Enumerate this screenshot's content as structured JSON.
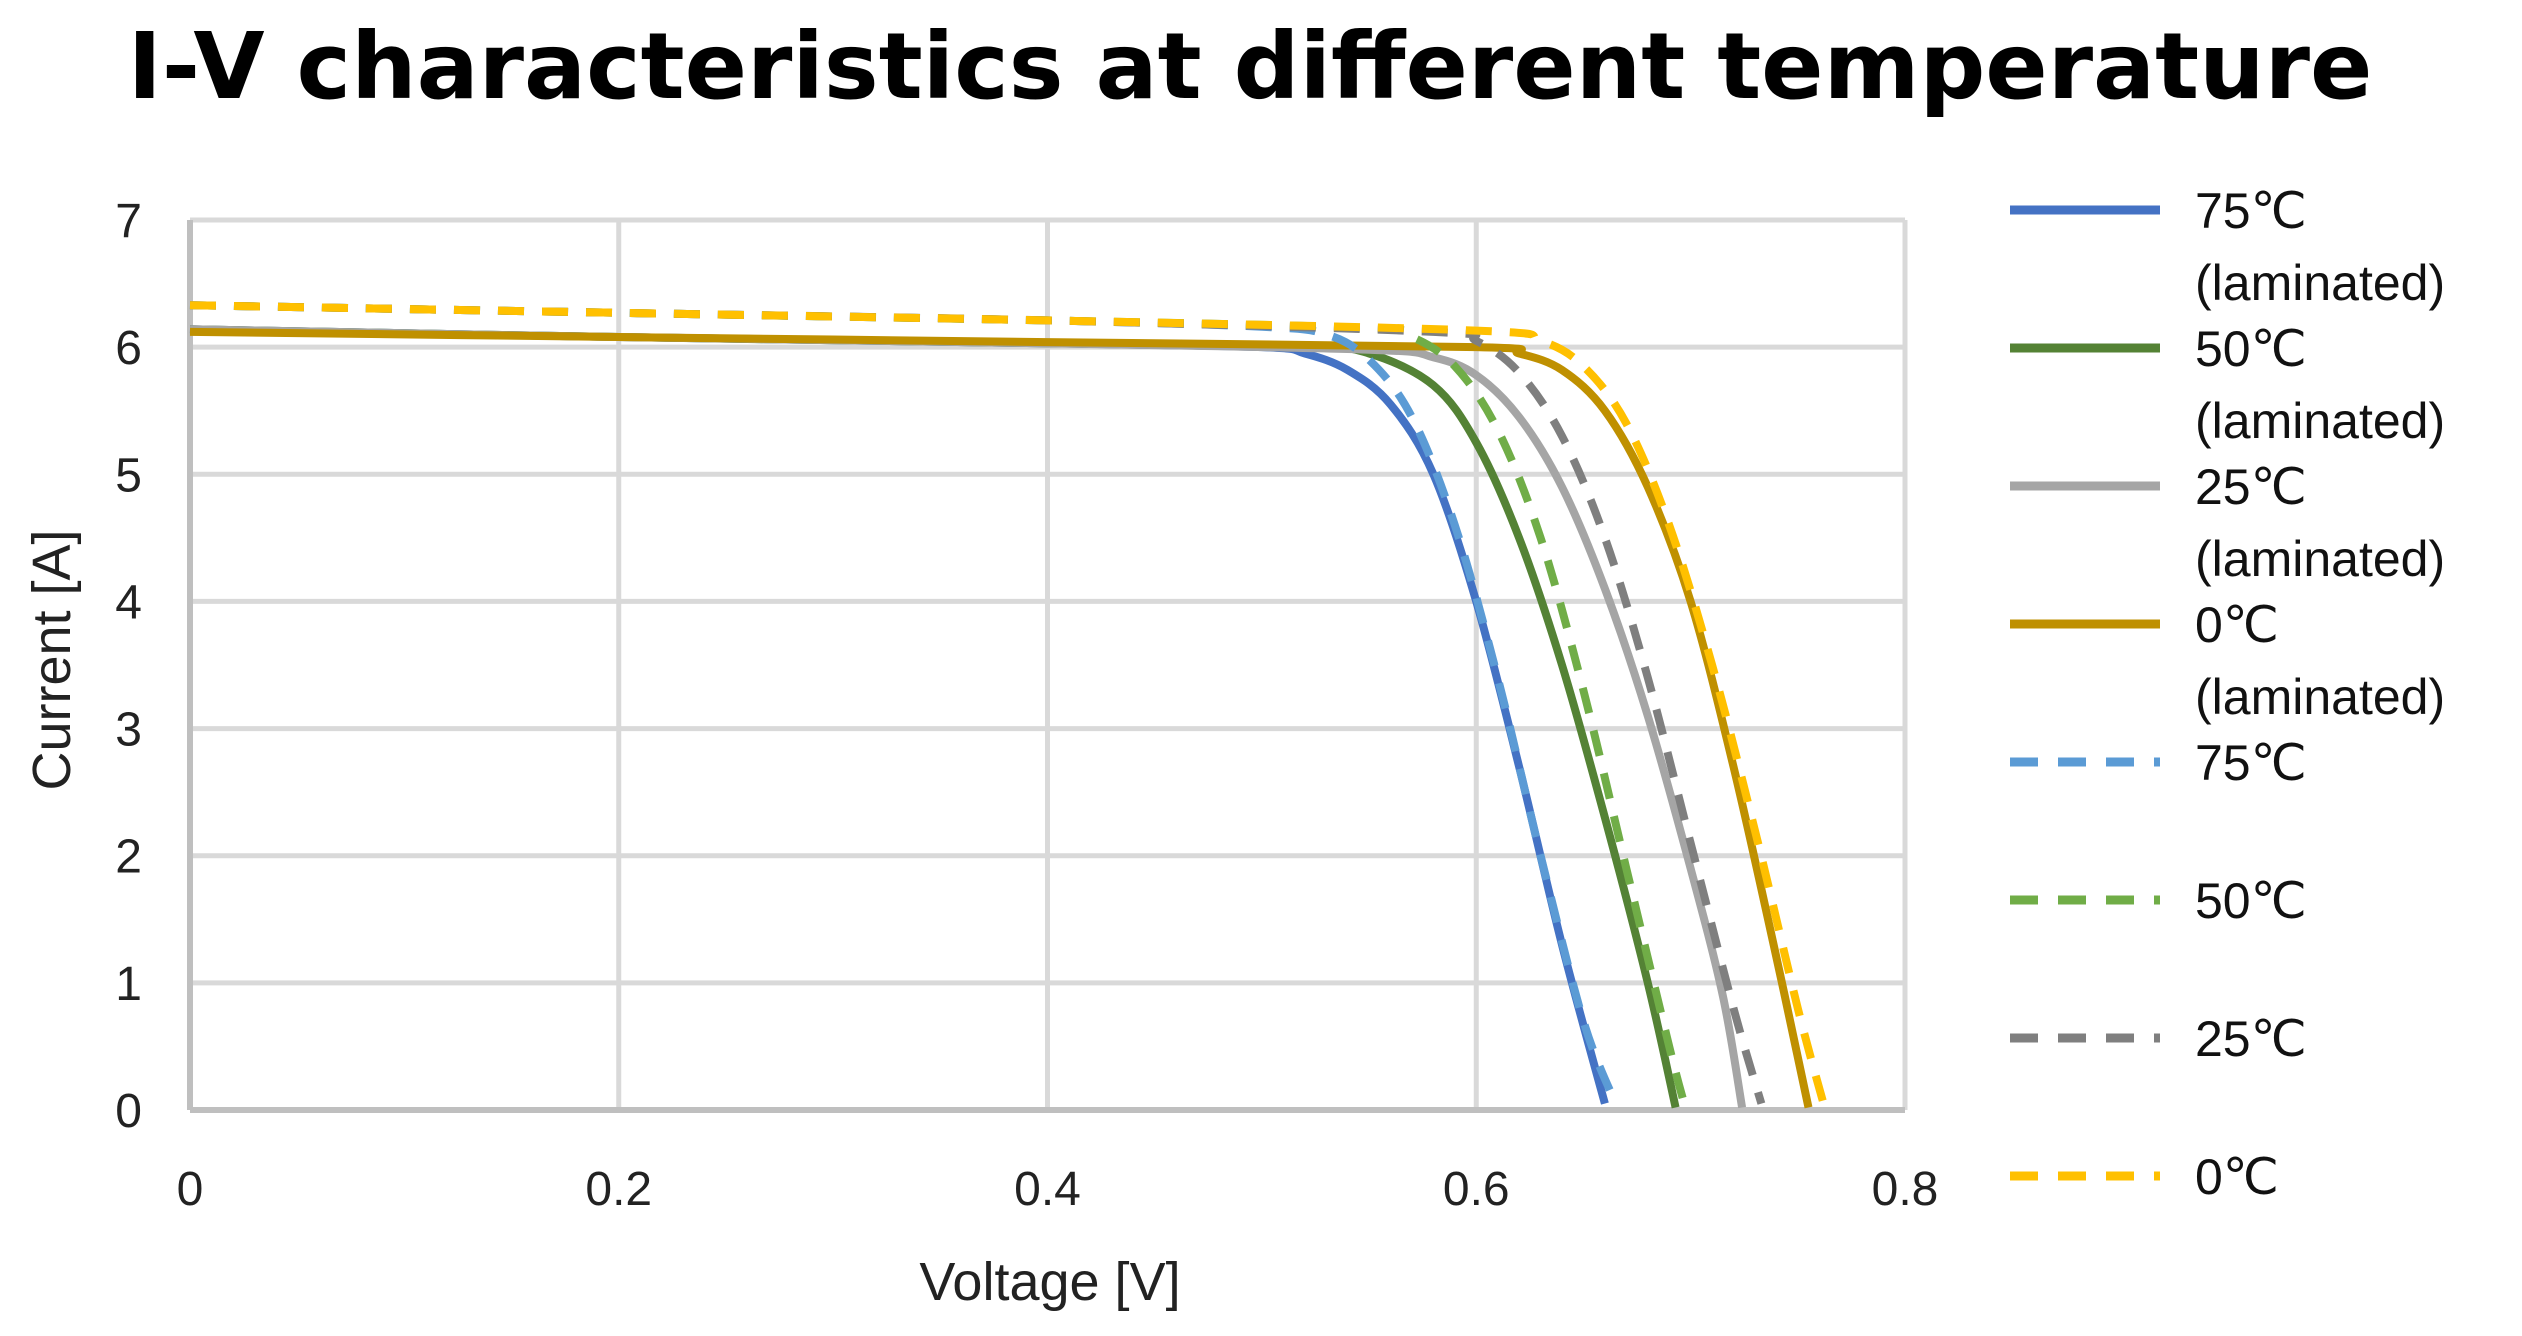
{
  "chart_data": {
    "type": "line",
    "title": "I-V characteristics at different temperature",
    "xlabel": "Voltage [V]",
    "ylabel": "Current [A]",
    "xlim": [
      0,
      0.8
    ],
    "ylim": [
      0,
      7
    ],
    "x_ticks": [
      0,
      0.2,
      0.4,
      0.6,
      0.8
    ],
    "x_tick_labels": [
      "0",
      "0.2",
      "0.4",
      "0.6",
      "0.8"
    ],
    "y_ticks": [
      0,
      1,
      2,
      3,
      4,
      5,
      6,
      7
    ],
    "y_tick_labels": [
      "0",
      "1",
      "2",
      "3",
      "4",
      "5",
      "6",
      "7"
    ],
    "grid": true,
    "legend_position": "right",
    "series": [
      {
        "name": "75℃ (laminated)",
        "legend_lines": [
          "75℃",
          "(laminated)"
        ],
        "color": "#4472C4",
        "dash": "solid",
        "x": [
          0,
          0.2,
          0.4,
          0.5,
          0.52,
          0.54,
          0.56,
          0.58,
          0.6,
          0.62,
          0.64,
          0.66
        ],
        "y": [
          6.14,
          6.08,
          6.03,
          6.0,
          5.95,
          5.82,
          5.55,
          5.0,
          4.0,
          2.7,
          1.3,
          0.05
        ]
      },
      {
        "name": "50℃ (laminated)",
        "legend_lines": [
          "50℃",
          "(laminated)"
        ],
        "color": "#548235",
        "dash": "solid",
        "x": [
          0,
          0.2,
          0.4,
          0.52,
          0.55,
          0.58,
          0.6,
          0.62,
          0.64,
          0.66,
          0.68,
          0.693
        ],
        "y": [
          6.14,
          6.08,
          6.03,
          6.0,
          5.95,
          5.7,
          5.25,
          4.5,
          3.5,
          2.3,
          1.0,
          0.02
        ]
      },
      {
        "name": "25℃ (laminated)",
        "legend_lines": [
          "25℃",
          "(laminated)"
        ],
        "color": "#A5A5A5",
        "dash": "solid",
        "x": [
          0,
          0.2,
          0.4,
          0.55,
          0.58,
          0.6,
          0.62,
          0.64,
          0.66,
          0.68,
          0.7,
          0.715,
          0.724
        ],
        "y": [
          6.14,
          6.08,
          6.03,
          5.98,
          5.92,
          5.78,
          5.45,
          4.9,
          4.1,
          3.1,
          1.9,
          0.9,
          0.02
        ]
      },
      {
        "name": "0℃ (laminated)",
        "legend_lines": [
          "0℃",
          "(laminated)"
        ],
        "color": "#BF9000",
        "dash": "solid",
        "x": [
          0,
          0.2,
          0.4,
          0.6,
          0.62,
          0.64,
          0.66,
          0.68,
          0.7,
          0.72,
          0.74,
          0.755
        ],
        "y": [
          6.12,
          6.08,
          6.04,
          6.0,
          5.95,
          5.82,
          5.5,
          4.9,
          4.0,
          2.7,
          1.2,
          0.02
        ]
      },
      {
        "name": "75℃",
        "legend_lines": [
          "75℃"
        ],
        "color": "#5B9BD5",
        "dash": "dashed",
        "x": [
          0,
          0.2,
          0.4,
          0.5,
          0.53,
          0.55,
          0.57,
          0.59,
          0.61,
          0.63,
          0.65,
          0.665
        ],
        "y": [
          6.33,
          6.27,
          6.21,
          6.16,
          6.1,
          5.9,
          5.45,
          4.6,
          3.4,
          2.0,
          0.7,
          0.05
        ]
      },
      {
        "name": "50℃",
        "legend_lines": [
          "50℃"
        ],
        "color": "#70AD47",
        "dash": "dashed",
        "x": [
          0,
          0.2,
          0.4,
          0.55,
          0.57,
          0.59,
          0.61,
          0.63,
          0.65,
          0.67,
          0.69,
          0.697
        ],
        "y": [
          6.33,
          6.27,
          6.21,
          6.15,
          6.08,
          5.85,
          5.35,
          4.5,
          3.3,
          1.9,
          0.5,
          0.05
        ]
      },
      {
        "name": "25℃",
        "legend_lines": [
          "25℃"
        ],
        "color": "#7F7F7F",
        "dash": "dashed",
        "x": [
          0,
          0.2,
          0.4,
          0.58,
          0.6,
          0.62,
          0.64,
          0.66,
          0.68,
          0.7,
          0.72,
          0.733
        ],
        "y": [
          6.33,
          6.27,
          6.21,
          6.12,
          6.05,
          5.8,
          5.3,
          4.5,
          3.4,
          2.1,
          0.8,
          0.05
        ]
      },
      {
        "name": "0℃",
        "legend_lines": [
          "0℃"
        ],
        "color": "#FFC000",
        "dash": "dashed",
        "x": [
          0,
          0.2,
          0.4,
          0.6,
          0.63,
          0.65,
          0.67,
          0.69,
          0.71,
          0.73,
          0.75,
          0.762
        ],
        "y": [
          6.33,
          6.27,
          6.21,
          6.13,
          6.05,
          5.85,
          5.4,
          4.6,
          3.5,
          2.2,
          0.8,
          0.05
        ]
      }
    ]
  }
}
